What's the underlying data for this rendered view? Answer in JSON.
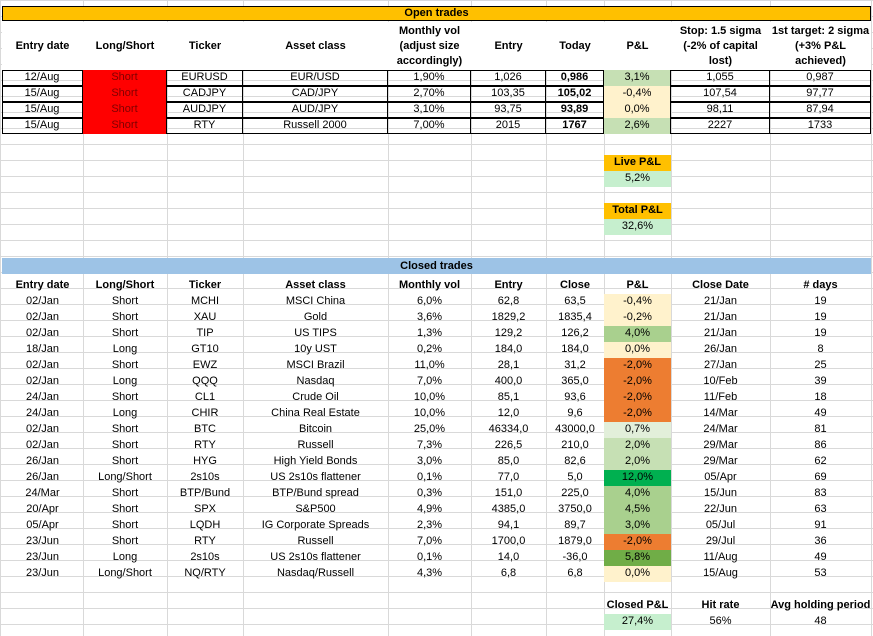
{
  "open": {
    "title": "Open trades",
    "headers": [
      "Entry date",
      "Long/Short",
      "Ticker",
      "Asset class",
      "Monthly vol (adjust size accordingly)",
      "Entry",
      "Today",
      "P&L",
      "Stop: 1.5 sigma (-2% of capital lost)",
      "1st target: 2 sigma (+3% P&L achieved)"
    ],
    "rows": [
      {
        "date": "12/Aug",
        "side": "Short",
        "ticker": "EURUSD",
        "asset": "EUR/USD",
        "vol": "1,90%",
        "entry": "1,026",
        "today": "0,986",
        "pl": "3,1%",
        "stop": "1,055",
        "target": "0,987",
        "pl_color": "#c6e0b4"
      },
      {
        "date": "15/Aug",
        "side": "Short",
        "ticker": "CADJPY",
        "asset": "CAD/JPY",
        "vol": "2,70%",
        "entry": "103,35",
        "today": "105,02",
        "pl": "-0,4%",
        "stop": "107,54",
        "target": "97,77",
        "pl_color": "#fff2cc"
      },
      {
        "date": "15/Aug",
        "side": "Short",
        "ticker": "AUDJPY",
        "asset": "AUD/JPY",
        "vol": "3,10%",
        "entry": "93,75",
        "today": "93,89",
        "pl": "0,0%",
        "stop": "98,11",
        "target": "87,94",
        "pl_color": "#fff2cc"
      },
      {
        "date": "15/Aug",
        "side": "Short",
        "ticker": "RTY",
        "asset": "Russell 2000",
        "vol": "7,00%",
        "entry": "2015",
        "today": "1767",
        "pl": "2,6%",
        "stop": "2227",
        "target": "1733",
        "pl_color": "#c6e0b4"
      }
    ],
    "live_label": "Live P&L",
    "live_value": "5,2%",
    "total_label": "Total P&L",
    "total_value": "32,6%"
  },
  "closed": {
    "title": "Closed trades",
    "headers": [
      "Entry date",
      "Long/Short",
      "Ticker",
      "Asset class",
      "Monthly vol",
      "Entry",
      "Close",
      "P&L",
      "Close Date",
      "# days"
    ],
    "rows": [
      {
        "date": "02/Jan",
        "side": "Short",
        "ticker": "MCHI",
        "asset": "MSCI China",
        "vol": "6,0%",
        "entry": "62,8",
        "close": "63,5",
        "pl": "-0,4%",
        "cdate": "21/Jan",
        "days": "19",
        "pl_color": "#fff2cc"
      },
      {
        "date": "02/Jan",
        "side": "Short",
        "ticker": "XAU",
        "asset": "Gold",
        "vol": "3,6%",
        "entry": "1829,2",
        "close": "1835,4",
        "pl": "-0,2%",
        "cdate": "21/Jan",
        "days": "19",
        "pl_color": "#fff2cc"
      },
      {
        "date": "02/Jan",
        "side": "Short",
        "ticker": "TIP",
        "asset": "US TIPS",
        "vol": "1,3%",
        "entry": "129,2",
        "close": "126,2",
        "pl": "4,0%",
        "cdate": "21/Jan",
        "days": "19",
        "pl_color": "#a9d08e"
      },
      {
        "date": "18/Jan",
        "side": "Long",
        "ticker": "GT10",
        "asset": "10y UST",
        "vol": "0,2%",
        "entry": "184,0",
        "close": "184,0",
        "pl": "0,0%",
        "cdate": "26/Jan",
        "days": "8",
        "pl_color": "#fff2cc"
      },
      {
        "date": "02/Jan",
        "side": "Short",
        "ticker": "EWZ",
        "asset": "MSCI Brazil",
        "vol": "11,0%",
        "entry": "28,1",
        "close": "31,2",
        "pl": "-2,0%",
        "cdate": "27/Jan",
        "days": "25",
        "pl_color": "#ed7d31"
      },
      {
        "date": "02/Jan",
        "side": "Long",
        "ticker": "QQQ",
        "asset": "Nasdaq",
        "vol": "7,0%",
        "entry": "400,0",
        "close": "365,0",
        "pl": "-2,0%",
        "cdate": "10/Feb",
        "days": "39",
        "pl_color": "#ed7d31"
      },
      {
        "date": "24/Jan",
        "side": "Short",
        "ticker": "CL1",
        "asset": "Crude Oil",
        "vol": "10,0%",
        "entry": "85,1",
        "close": "93,6",
        "pl": "-2,0%",
        "cdate": "11/Feb",
        "days": "18",
        "pl_color": "#ed7d31"
      },
      {
        "date": "24/Jan",
        "side": "Long",
        "ticker": "CHIR",
        "asset": "China Real Estate",
        "vol": "10,0%",
        "entry": "12,0",
        "close": "9,6",
        "pl": "-2,0%",
        "cdate": "14/Mar",
        "days": "49",
        "pl_color": "#ed7d31"
      },
      {
        "date": "02/Jan",
        "side": "Short",
        "ticker": "BTC",
        "asset": "Bitcoin",
        "vol": "25,0%",
        "entry": "46334,0",
        "close": "43000,0",
        "pl": "0,7%",
        "cdate": "24/Mar",
        "days": "81",
        "pl_color": "#e2efda"
      },
      {
        "date": "02/Jan",
        "side": "Short",
        "ticker": "RTY",
        "asset": "Russell",
        "vol": "7,3%",
        "entry": "226,5",
        "close": "210,0",
        "pl": "2,0%",
        "cdate": "29/Mar",
        "days": "86",
        "pl_color": "#c6e0b4"
      },
      {
        "date": "26/Jan",
        "side": "Short",
        "ticker": "HYG",
        "asset": "High Yield Bonds",
        "vol": "3,0%",
        "entry": "85,0",
        "close": "82,6",
        "pl": "2,0%",
        "cdate": "29/Mar",
        "days": "62",
        "pl_color": "#c6e0b4"
      },
      {
        "date": "26/Jan",
        "side": "Long/Short",
        "ticker": "2s10s",
        "asset": "US 2s10s flattener",
        "vol": "0,1%",
        "entry": "77,0",
        "close": "5,0",
        "pl": "12,0%",
        "cdate": "05/Apr",
        "days": "69",
        "pl_color": "#00b050"
      },
      {
        "date": "24/Mar",
        "side": "Short",
        "ticker": "BTP/Bund",
        "asset": "BTP/Bund spread",
        "vol": "0,3%",
        "entry": "151,0",
        "close": "225,0",
        "pl": "4,0%",
        "cdate": "15/Jun",
        "days": "83",
        "pl_color": "#a9d08e"
      },
      {
        "date": "20/Apr",
        "side": "Short",
        "ticker": "SPX",
        "asset": "S&P500",
        "vol": "4,9%",
        "entry": "4385,0",
        "close": "3750,0",
        "pl": "4,5%",
        "cdate": "22/Jun",
        "days": "63",
        "pl_color": "#a9d08e"
      },
      {
        "date": "05/Apr",
        "side": "Short",
        "ticker": "LQDH",
        "asset": "IG Corporate Spreads",
        "vol": "2,3%",
        "entry": "94,1",
        "close": "89,7",
        "pl": "3,0%",
        "cdate": "05/Jul",
        "days": "91",
        "pl_color": "#a9d08e"
      },
      {
        "date": "23/Jun",
        "side": "Short",
        "ticker": "RTY",
        "asset": "Russell",
        "vol": "7,0%",
        "entry": "1700,0",
        "close": "1879,0",
        "pl": "-2,0%",
        "cdate": "29/Jul",
        "days": "36",
        "pl_color": "#ed7d31"
      },
      {
        "date": "23/Jun",
        "side": "Long",
        "ticker": "2s10s",
        "asset": "US 2s10s flattener",
        "vol": "0,1%",
        "entry": "14,0",
        "close": "-36,0",
        "pl": "5,8%",
        "cdate": "11/Aug",
        "days": "49",
        "pl_color": "#70ad47"
      },
      {
        "date": "23/Jun",
        "side": "Long/Short",
        "ticker": "NQ/RTY",
        "asset": "Nasdaq/Russell",
        "vol": "4,3%",
        "entry": "6,8",
        "close": "6,8",
        "pl": "0,0%",
        "cdate": "15/Aug",
        "days": "53",
        "pl_color": "#fff2cc"
      }
    ],
    "closed_label": "Closed P&L",
    "closed_value": "27,4%",
    "hit_label": "Hit rate",
    "hit_value": "56%",
    "avg_label": "Avg holding period",
    "avg_value": "48"
  }
}
